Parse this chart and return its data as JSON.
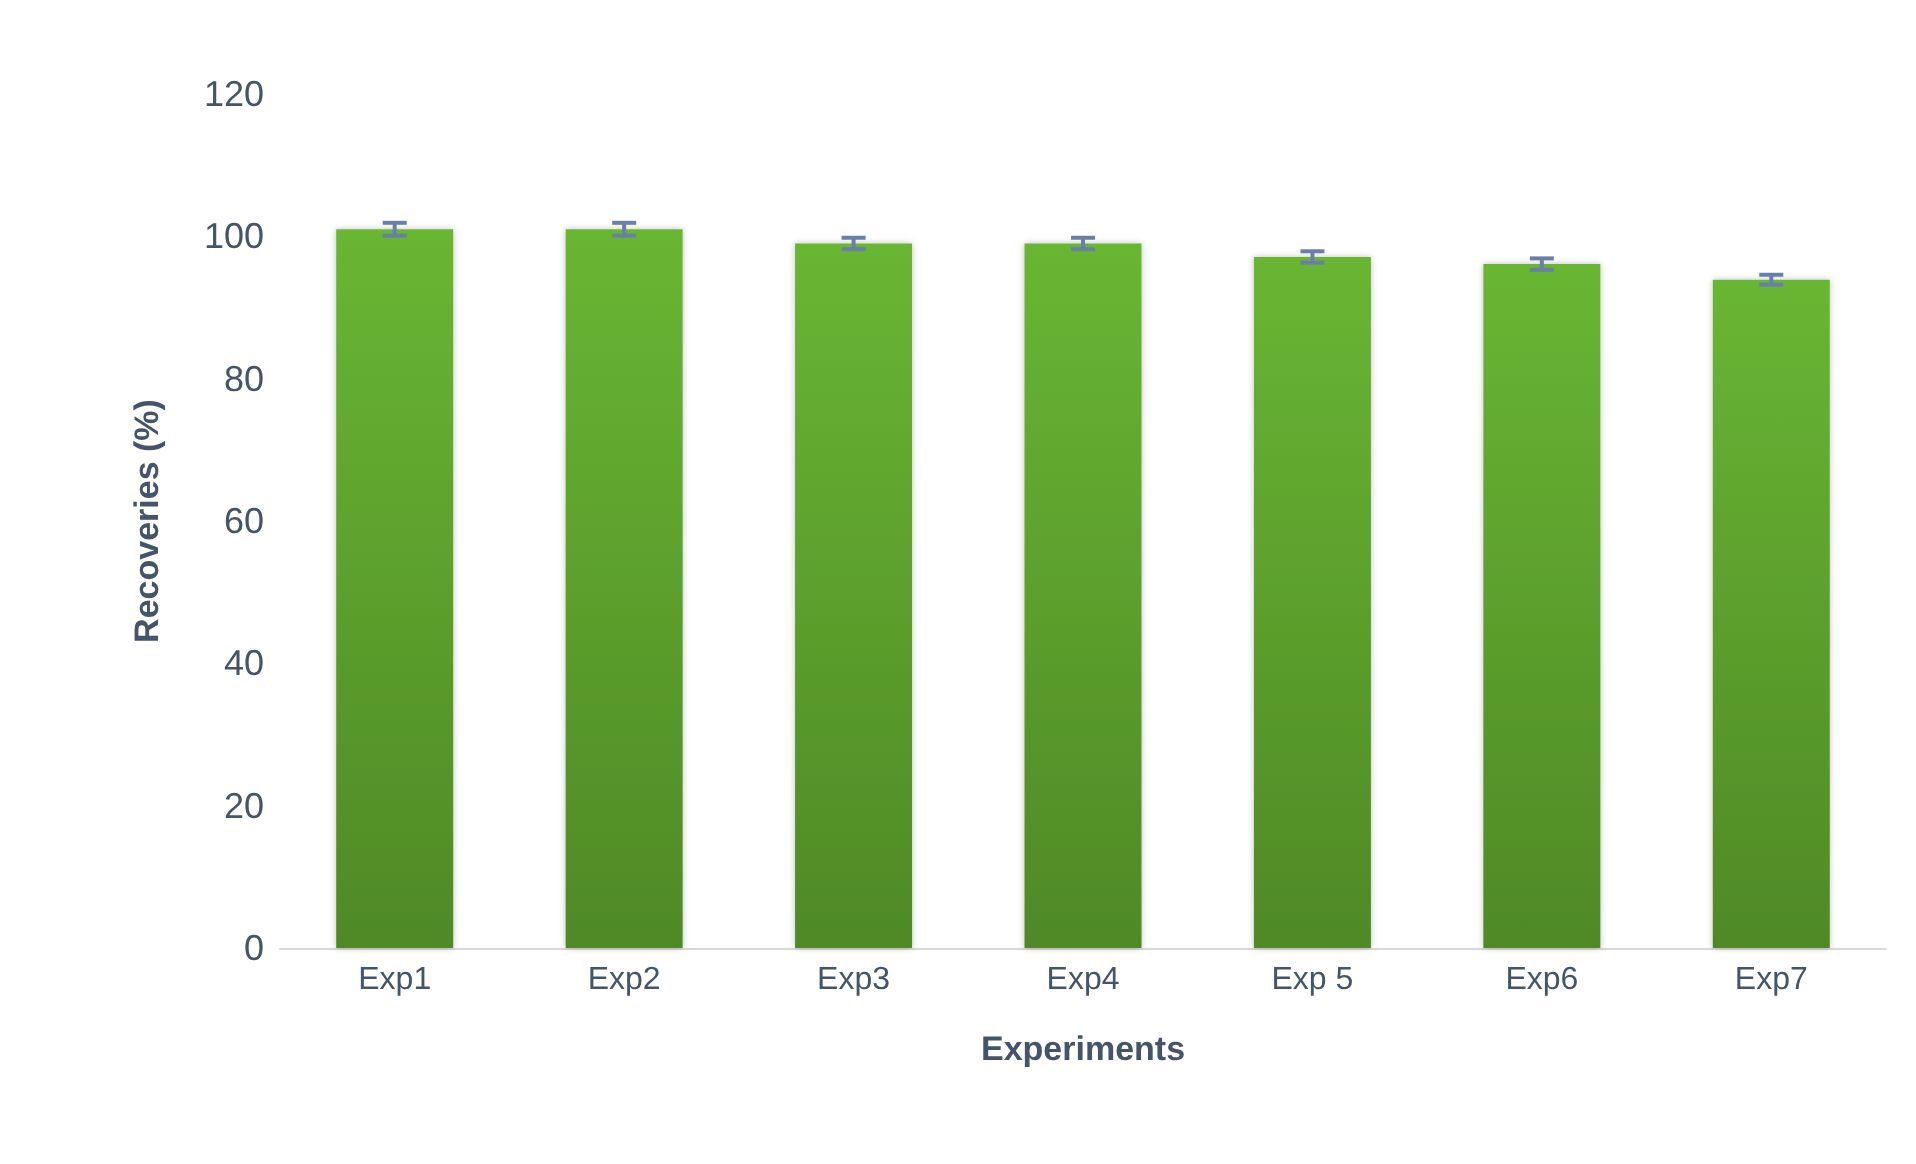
{
  "chart_data": {
    "type": "bar",
    "xlabel": "Experiments",
    "ylabel": "Recoveries (%)",
    "categories": [
      "Exp1",
      "Exp2",
      "Exp3",
      "Exp4",
      "Exp 5",
      "Exp6",
      "Exp7"
    ],
    "values": [
      101.0,
      101.0,
      99.0,
      99.0,
      97.1,
      96.1,
      93.9
    ],
    "errors": [
      0.9,
      0.9,
      0.8,
      0.8,
      0.8,
      0.8,
      0.7
    ],
    "color": "#69b633",
    "ylim": [
      0,
      120
    ],
    "yticks": [
      0,
      20,
      40,
      60,
      80,
      100,
      120
    ],
    "grid": false
  }
}
